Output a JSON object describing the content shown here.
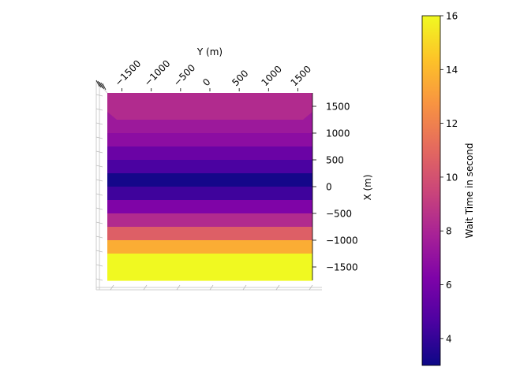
{
  "chart_data": {
    "type": "heatmap",
    "view": "top-down 3D surface",
    "xlabel": "Y (m)",
    "ylabel": "X (m)",
    "colorbar_label": "Wait Time in second",
    "colormap": "plasma",
    "x_range": [
      -1750,
      1750
    ],
    "y_range": [
      -1750,
      1750
    ],
    "x_ticks": [
      -1500,
      -1000,
      -500,
      0,
      500,
      1000,
      1500
    ],
    "x_tick_labels": [
      "−1500",
      "−1000",
      "−500",
      "0",
      "500",
      "1000",
      "1500"
    ],
    "y_ticks": [
      1500,
      1000,
      500,
      0,
      -500,
      -1000,
      -1500
    ],
    "y_tick_labels": [
      "1500",
      "1000",
      "500",
      "0",
      "−500",
      "−1000",
      "−1500"
    ],
    "color_range": [
      3,
      16
    ],
    "colorbar_ticks": [
      4,
      6,
      8,
      10,
      12,
      14,
      16
    ],
    "bands": [
      {
        "x_from": 1750,
        "x_to": 1250,
        "value": 8.3
      },
      {
        "x_from": 1250,
        "x_to": 1000,
        "value": 7.4
      },
      {
        "x_from": 1000,
        "x_to": 750,
        "value": 6.8
      },
      {
        "x_from": 750,
        "x_to": 500,
        "value": 5.6
      },
      {
        "x_from": 500,
        "x_to": 250,
        "value": 4.6
      },
      {
        "x_from": 250,
        "x_to": 0,
        "value": 3.2
      },
      {
        "x_from": 0,
        "x_to": -250,
        "value": 4.3
      },
      {
        "x_from": -250,
        "x_to": -500,
        "value": 6.3
      },
      {
        "x_from": -500,
        "x_to": -750,
        "value": 8.3
      },
      {
        "x_from": -750,
        "x_to": -1000,
        "value": 10.6
      },
      {
        "x_from": -1000,
        "x_to": -1250,
        "value": 13.6
      },
      {
        "x_from": -1250,
        "x_to": -1750,
        "value": 16.0
      }
    ]
  }
}
